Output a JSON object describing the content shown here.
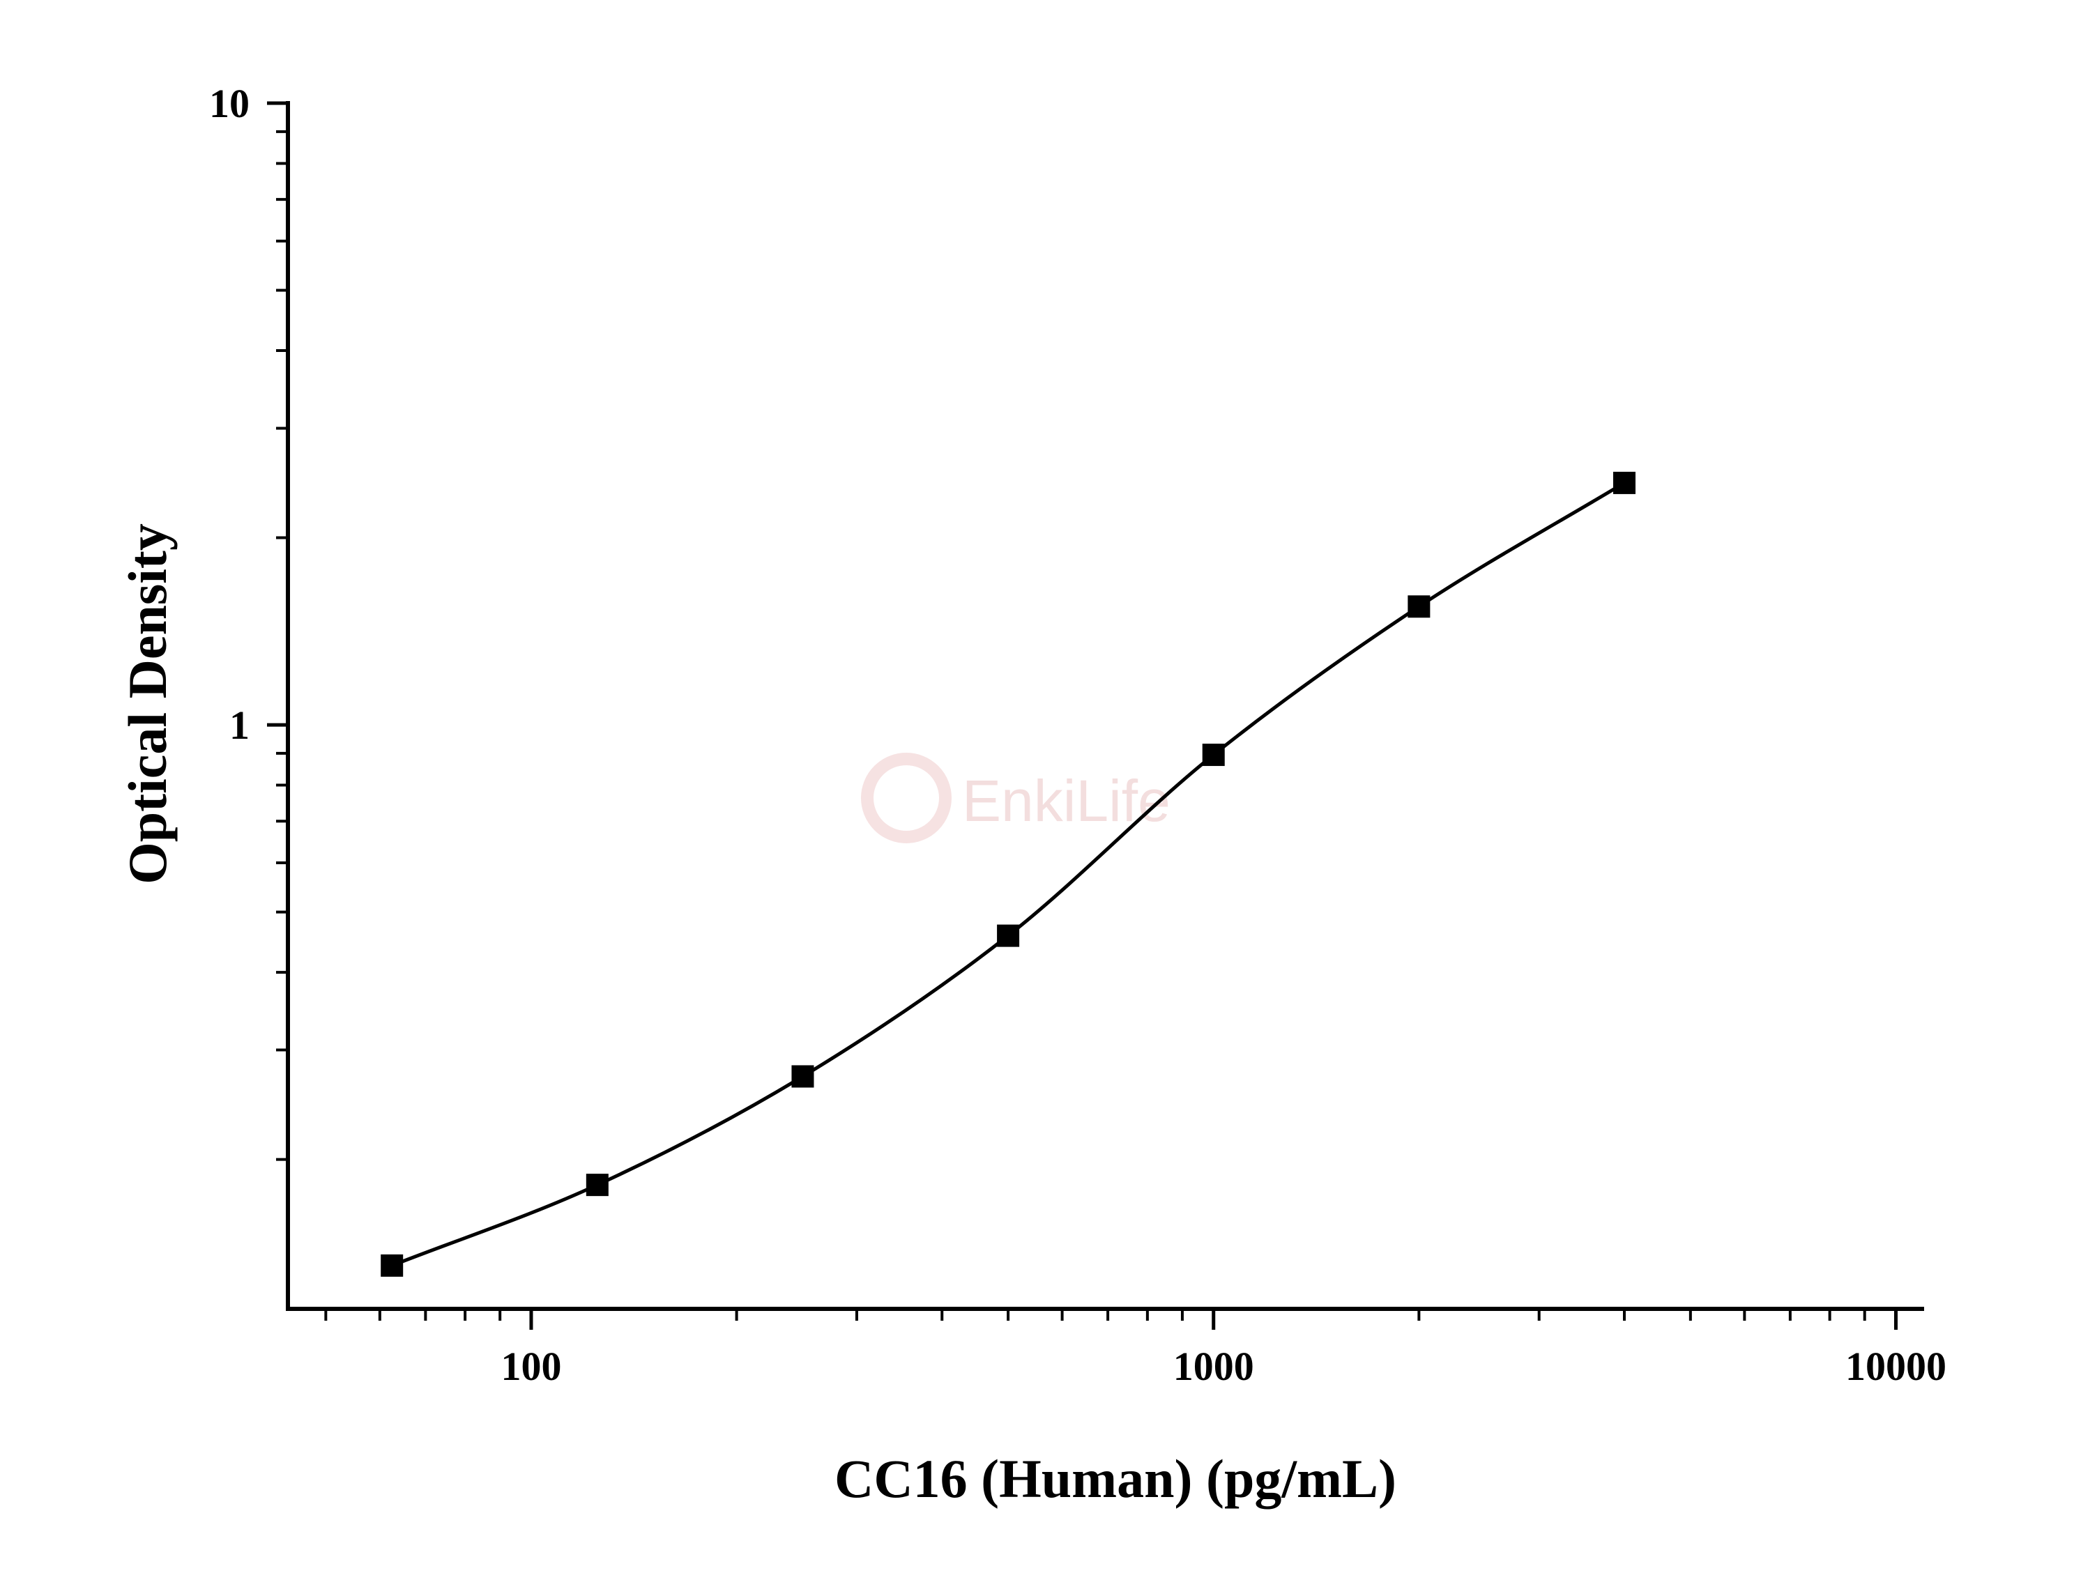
{
  "chart_data": {
    "type": "scatter",
    "title": "",
    "xlabel": "CC16 (Human) (pg/mL)",
    "ylabel": "Optical Density",
    "x_scale": "log",
    "y_scale": "log",
    "xlim": [
      44,
      11000
    ],
    "ylim": [
      0.115,
      10
    ],
    "x_ticks": [
      100,
      1000,
      10000
    ],
    "x_tick_labels": [
      "100",
      "1000",
      "10000"
    ],
    "y_ticks": [
      1,
      10
    ],
    "y_tick_labels": [
      "1",
      "10"
    ],
    "grid": false,
    "legend": "none",
    "series": [
      {
        "x": [
          62.5,
          125,
          250,
          500,
          1000,
          2000,
          4000
        ],
        "y": [
          0.135,
          0.182,
          0.272,
          0.458,
          0.895,
          1.55,
          2.45
        ],
        "marker": "square",
        "color": "#000000",
        "fit_curve": true
      }
    ],
    "watermark": "EnkiLife"
  }
}
